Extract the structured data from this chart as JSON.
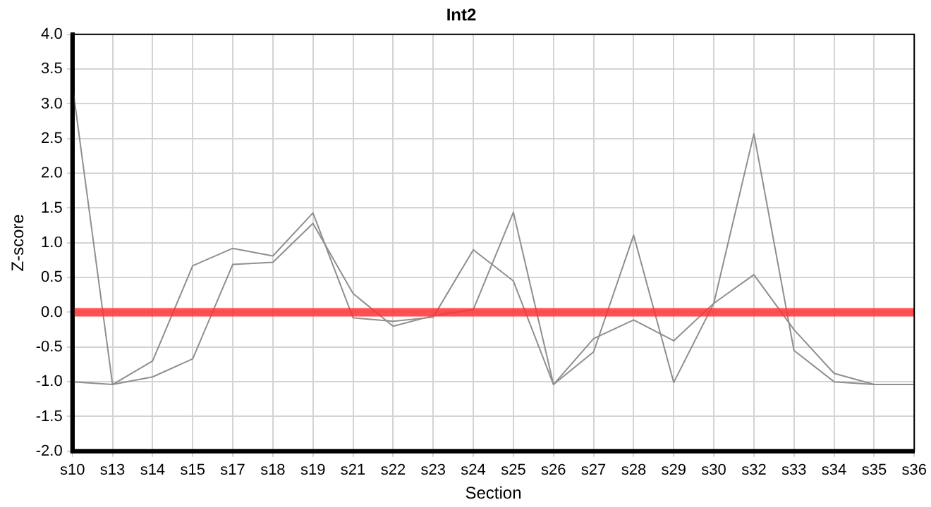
{
  "chart_data": {
    "type": "line",
    "title": "Int2",
    "xlabel": "Section",
    "ylabel": "Z-score",
    "categories": [
      "s10",
      "s13",
      "s14",
      "s15",
      "s17",
      "s18",
      "s19",
      "s21",
      "s22",
      "s23",
      "s24",
      "s25",
      "s26",
      "s27",
      "s28",
      "s29",
      "s30",
      "s32",
      "s33",
      "s34",
      "s35",
      "s36"
    ],
    "series": [
      {
        "color": "#8f8f8f",
        "values": [
          3.27,
          -1.04,
          -0.7,
          0.67,
          0.92,
          0.81,
          1.43,
          -0.08,
          -0.13,
          -0.07,
          0.9,
          0.45,
          -1.04,
          -0.57,
          1.11,
          -1.01,
          0.13,
          2.57,
          -0.55,
          -1.0,
          -1.04,
          -1.04
        ]
      },
      {
        "color": "#8f8f8f",
        "values": [
          -1.0,
          -1.04,
          -0.93,
          -0.67,
          0.69,
          0.72,
          1.28,
          0.27,
          -0.2,
          -0.05,
          0.04,
          1.44,
          -1.04,
          -0.38,
          -0.11,
          -0.41,
          0.13,
          0.54,
          -0.25,
          -0.88,
          -1.04,
          -1.04
        ]
      }
    ],
    "ref_lines": [
      {
        "axis": "y",
        "value": 0,
        "color": "#ff3333"
      }
    ],
    "ylim": [
      -2,
      4
    ],
    "yticks": [
      {
        "value": -2,
        "label": "-2.0"
      },
      {
        "value": -1.5,
        "label": "-1.5"
      },
      {
        "value": -1,
        "label": "-1.0"
      },
      {
        "value": -0.5,
        "label": "-0.5"
      },
      {
        "value": 0,
        "label": "0.0"
      },
      {
        "value": 0.5,
        "label": "0.5"
      },
      {
        "value": 1,
        "label": "1.0"
      },
      {
        "value": 1.5,
        "label": "1.5"
      },
      {
        "value": 2,
        "label": "2.0"
      },
      {
        "value": 2.5,
        "label": "2.5"
      },
      {
        "value": 3,
        "label": "3.0"
      },
      {
        "value": 3.5,
        "label": "3.5"
      },
      {
        "value": 4,
        "label": "4.0"
      }
    ],
    "grid": true,
    "legend": false,
    "marker": "none",
    "line_style": "solid"
  }
}
